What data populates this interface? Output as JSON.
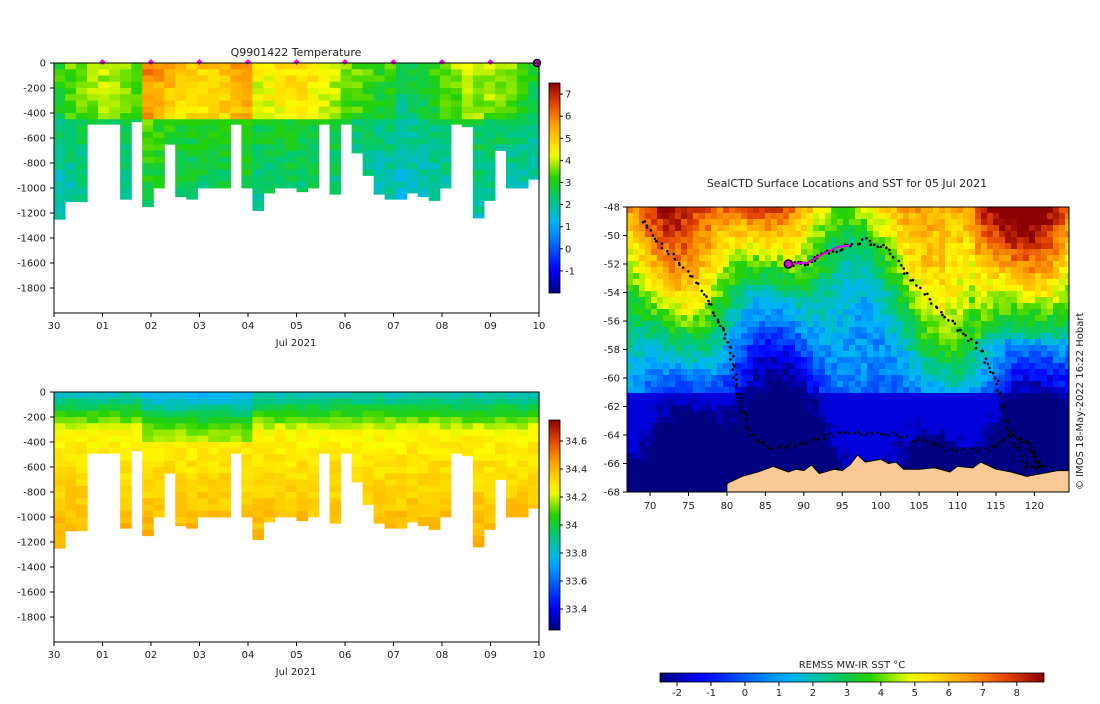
{
  "temperature_title": "Q9901422  Temperature",
  "salinity_title": "",
  "map_title": "SealCTD Surface Locations and SST for 05 Jul 2021",
  "watermark": "© IMOS 18-May-2022 16:22 Hobart",
  "sst_colorbar_label": "REMSS MW-IR SST °C",
  "chart_data": [
    {
      "type": "heatmap",
      "title": "Q9901422  Temperature",
      "xlabel": "Jul 2021",
      "ylabel": "",
      "x_ticks": [
        "30",
        "01",
        "02",
        "03",
        "04",
        "05",
        "06",
        "07",
        "08",
        "09",
        "10"
      ],
      "y_ticks": [
        0,
        -200,
        -400,
        -600,
        -800,
        -1000,
        -1200,
        -1400,
        -1600,
        -1800
      ],
      "ylim": [
        -2000,
        0
      ],
      "colorbar": {
        "min": -2,
        "max": 7.5,
        "ticks": [
          7,
          6,
          5,
          4,
          3,
          2,
          1,
          0,
          -1
        ]
      },
      "profile_depths": [
        1250,
        1110,
        1110,
        490,
        490,
        490,
        1090,
        470,
        1150,
        1000,
        650,
        1070,
        1090,
        1000,
        1000,
        1000,
        490,
        1000,
        1180,
        1040,
        1000,
        1000,
        1030,
        1000,
        490,
        1050,
        490,
        720,
        900,
        1050,
        1090,
        1090,
        1040,
        1070,
        1100,
        1000,
        490,
        510,
        1240,
        1100,
        700,
        1000,
        1000,
        930
      ],
      "surface_marker_days": [
        1,
        2,
        3,
        4,
        5,
        6,
        7,
        8,
        9
      ]
    },
    {
      "type": "heatmap",
      "title": "",
      "xlabel": "Jul 2021",
      "ylabel": "",
      "x_ticks": [
        "30",
        "01",
        "02",
        "03",
        "04",
        "05",
        "06",
        "07",
        "08",
        "09",
        "10"
      ],
      "y_ticks": [
        0,
        -200,
        -400,
        -600,
        -800,
        -1000,
        -1200,
        -1400,
        -1600,
        -1800
      ],
      "ylim": [
        -2000,
        0
      ],
      "colorbar": {
        "min": 33.25,
        "max": 34.75,
        "ticks": [
          34.6,
          34.4,
          34.2,
          34,
          33.8,
          33.6,
          33.4
        ]
      }
    },
    {
      "type": "heatmap",
      "title": "SealCTD Surface Locations and SST for 05 Jul 2021",
      "x_ticks": [
        70,
        75,
        80,
        85,
        90,
        95,
        100,
        105,
        110,
        115,
        120
      ],
      "y_ticks": [
        -48,
        -50,
        -52,
        -54,
        -56,
        -58,
        -60,
        -62,
        -64,
        -66,
        -68
      ],
      "xlim": [
        67,
        124.5
      ],
      "ylim": [
        -68,
        -48
      ],
      "colorbar": {
        "label": "REMSS MW-IR SST °C",
        "min": -2.5,
        "max": 8.8,
        "ticks": [
          -2,
          -1,
          0,
          1,
          2,
          3,
          4,
          5,
          6,
          7,
          8
        ]
      },
      "current_position": {
        "lon": 88,
        "lat": -52
      }
    }
  ]
}
